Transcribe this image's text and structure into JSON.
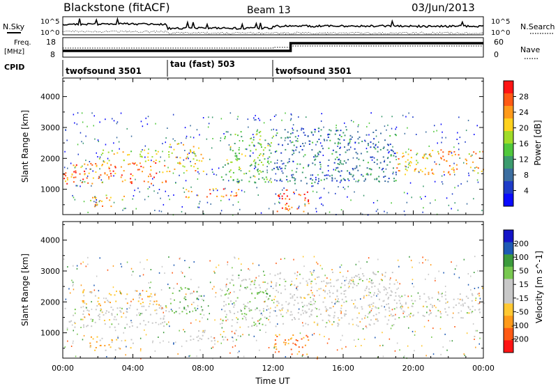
{
  "header": {
    "title": "Blackstone (fitACF)",
    "beam": "Beam 13",
    "date": "03/Jun/2013"
  },
  "top_panel": {
    "nsky_label": "N.Sky",
    "nsearch_label": "N.Search",
    "left_ticks": [
      "10^5",
      "10^0"
    ],
    "right_ticks": [
      "10^5",
      "10^0"
    ]
  },
  "freq_panel": {
    "freq_label_line1": "Freq.",
    "freq_label_line2": "[MHz]",
    "nave_label": "Nave",
    "left_ticks": [
      "18",
      "8"
    ],
    "right_ticks": [
      "60",
      "0"
    ]
  },
  "cpid": {
    "label": "CPID",
    "segments": [
      {
        "name": "twofsound 3501",
        "start_h": 0
      },
      {
        "name": "tau (fast) 503",
        "start_h": 6
      },
      {
        "name": "twofsound 3501",
        "start_h": 12
      }
    ]
  },
  "chart_data": [
    {
      "type": "heatmap",
      "title": "",
      "ylabel": "Slant Range [km]",
      "xlabel": "",
      "xlim_h": [
        0,
        24
      ],
      "ylim_km": [
        180,
        4600
      ],
      "yticks": [
        "1000",
        "2000",
        "3000",
        "4000"
      ],
      "colorbar": {
        "label": "Power [dB]",
        "ticks": [
          "4",
          "8",
          "12",
          "16",
          "20",
          "24",
          "28"
        ],
        "range": [
          0,
          30
        ],
        "colors": [
          "#0a0aff",
          "#1e3cc8",
          "#3c6ea0",
          "#3c9b6e",
          "#50c83c",
          "#a0dc28",
          "#ffd21e",
          "#ff9a1a",
          "#ff5a14",
          "#ff1414"
        ]
      },
      "echo_regions_h_km": [
        {
          "t0": 0,
          "t1": 6,
          "r0": 1200,
          "r1": 1900,
          "level": 24
        },
        {
          "t0": 2,
          "t1": 5.5,
          "r0": 1900,
          "r1": 2300,
          "level": 18
        },
        {
          "t0": 1.5,
          "t1": 3.5,
          "r0": 450,
          "r1": 850,
          "level": 22
        },
        {
          "t0": 6,
          "t1": 8,
          "r0": 1600,
          "r1": 2500,
          "level": 20
        },
        {
          "t0": 7,
          "t1": 10,
          "r0": 750,
          "r1": 1050,
          "level": 24
        },
        {
          "t0": 9,
          "t1": 12,
          "r0": 1200,
          "r1": 2900,
          "level": 14
        },
        {
          "t0": 12,
          "t1": 14,
          "r0": 300,
          "r1": 1000,
          "level": 26
        },
        {
          "t0": 12,
          "t1": 19,
          "r0": 1200,
          "r1": 3000,
          "level": 8
        },
        {
          "t0": 19,
          "t1": 24,
          "r0": 1500,
          "r1": 2300,
          "level": 22
        }
      ]
    },
    {
      "type": "heatmap",
      "title": "",
      "ylabel": "Slant Range [km]",
      "xlabel": "Time UT",
      "xlim_h": [
        0,
        24
      ],
      "ylim_km": [
        180,
        4600
      ],
      "xticks": [
        "00:00",
        "04:00",
        "08:00",
        "12:00",
        "16:00",
        "20:00",
        "00:00"
      ],
      "yticks": [
        "1000",
        "2000",
        "3000",
        "4000"
      ],
      "colorbar": {
        "label": "Velocity [m s^-1]",
        "ticks": [
          "200",
          "100",
          "50",
          "15",
          "-15",
          "-50",
          "-100",
          "-200"
        ],
        "range": [
          -250,
          250
        ],
        "colors": [
          "#ff1414",
          "#ff5a14",
          "#ff9a1a",
          "#ffc832",
          "#c8c8c8",
          "#c8c8c8",
          "#78c850",
          "#3c9b3c",
          "#1e5ab4",
          "#1414c8"
        ]
      },
      "echo_regions_h_km": [
        {
          "t0": 0,
          "t1": 6,
          "r0": 1200,
          "r1": 1900,
          "level": 0
        },
        {
          "t0": 1,
          "t1": 5.5,
          "r0": 1900,
          "r1": 2400,
          "level": -60
        },
        {
          "t0": 1.5,
          "t1": 4,
          "r0": 450,
          "r1": 900,
          "level": -90
        },
        {
          "t0": 6,
          "t1": 8,
          "r0": 1600,
          "r1": 2500,
          "level": 60
        },
        {
          "t0": 7,
          "t1": 10,
          "r0": 750,
          "r1": 1100,
          "level": 0
        },
        {
          "t0": 9,
          "t1": 12,
          "r0": 1200,
          "r1": 2900,
          "level": 50
        },
        {
          "t0": 12,
          "t1": 14,
          "r0": 300,
          "r1": 1000,
          "level": -120
        },
        {
          "t0": 12,
          "t1": 19,
          "r0": 1200,
          "r1": 3000,
          "level": 0
        },
        {
          "t0": 19,
          "t1": 24,
          "r0": 1500,
          "r1": 2300,
          "level": 0
        }
      ]
    }
  ]
}
